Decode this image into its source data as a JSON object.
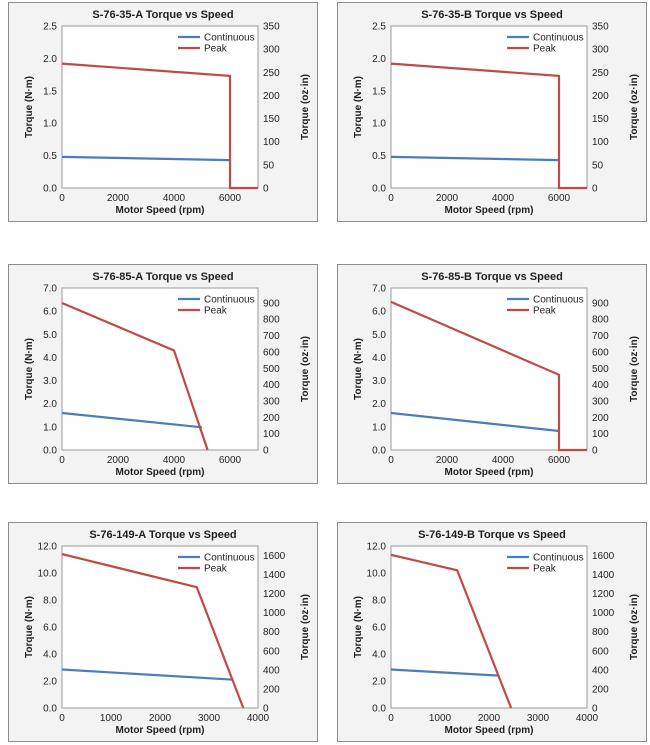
{
  "colors": {
    "continuous": "#4a7ebb",
    "peak": "#be4b48"
  },
  "chart_data": [
    {
      "type": "line",
      "title": "S-76-35-A Torque vs Speed",
      "xlabel": "Motor Speed (rpm)",
      "ylabel": "Torque (N·m)",
      "y2label": "Torque (oz·in)",
      "xlim": [
        0,
        7000
      ],
      "xticks": [
        "0",
        "2000",
        "4000",
        "6000"
      ],
      "xtick_values": [
        0,
        2000,
        4000,
        6000
      ],
      "ylim": [
        0,
        2.5
      ],
      "yticks": [
        "0.0",
        "0.5",
        "1.0",
        "1.5",
        "2.0",
        "2.5"
      ],
      "ytick_values": [
        0,
        0.5,
        1.0,
        1.5,
        2.0,
        2.5
      ],
      "y2lim": [
        0,
        350
      ],
      "y2ticks": [
        "0",
        "50",
        "100",
        "150",
        "200",
        "250",
        "300",
        "350"
      ],
      "y2tick_values": [
        0,
        50,
        100,
        150,
        200,
        250,
        300,
        350
      ],
      "legend": "top-right",
      "series": [
        {
          "name": "Continuous",
          "x": [
            0,
            6000
          ],
          "y": [
            0.48,
            0.43
          ]
        },
        {
          "name": "Peak",
          "x": [
            0,
            6000,
            6000,
            7000
          ],
          "y": [
            1.92,
            1.73,
            0,
            0
          ]
        }
      ]
    },
    {
      "type": "line",
      "title": "S-76-35-B Torque vs Speed",
      "xlabel": "Motor Speed (rpm)",
      "ylabel": "Torque (N·m)",
      "y2label": "Torque (oz·in)",
      "xlim": [
        0,
        7000
      ],
      "xticks": [
        "0",
        "2000",
        "4000",
        "6000"
      ],
      "xtick_values": [
        0,
        2000,
        4000,
        6000
      ],
      "ylim": [
        0,
        2.5
      ],
      "yticks": [
        "0.0",
        "0.5",
        "1.0",
        "1.5",
        "2.0",
        "2.5"
      ],
      "ytick_values": [
        0,
        0.5,
        1.0,
        1.5,
        2.0,
        2.5
      ],
      "y2lim": [
        0,
        350
      ],
      "y2ticks": [
        "0",
        "50",
        "100",
        "150",
        "200",
        "250",
        "300",
        "350"
      ],
      "y2tick_values": [
        0,
        50,
        100,
        150,
        200,
        250,
        300,
        350
      ],
      "legend": "top-right",
      "series": [
        {
          "name": "Continuous",
          "x": [
            0,
            6000
          ],
          "y": [
            0.48,
            0.43
          ]
        },
        {
          "name": "Peak",
          "x": [
            0,
            6000,
            6000,
            7000
          ],
          "y": [
            1.92,
            1.73,
            0,
            0
          ]
        }
      ]
    },
    {
      "type": "line",
      "title": "S-76-85-A Torque vs Speed",
      "xlabel": "Motor Speed (rpm)",
      "ylabel": "Torque (N·m)",
      "y2label": "Torque (oz·in)",
      "xlim": [
        0,
        7000
      ],
      "xticks": [
        "0",
        "2000",
        "4000",
        "6000"
      ],
      "xtick_values": [
        0,
        2000,
        4000,
        6000
      ],
      "ylim": [
        0,
        7.0
      ],
      "yticks": [
        "0.0",
        "1.0",
        "2.0",
        "3.0",
        "4.0",
        "5.0",
        "6.0",
        "7.0"
      ],
      "ytick_values": [
        0,
        1,
        2,
        3,
        4,
        5,
        6,
        7
      ],
      "y2lim": [
        0,
        991
      ],
      "y2ticks": [
        "0",
        "100",
        "200",
        "300",
        "400",
        "500",
        "600",
        "700",
        "800",
        "900"
      ],
      "y2tick_values": [
        0,
        100,
        200,
        300,
        400,
        500,
        600,
        700,
        800,
        900
      ],
      "legend": "top-right",
      "series": [
        {
          "name": "Continuous",
          "x": [
            0,
            5000
          ],
          "y": [
            1.6,
            0.98
          ]
        },
        {
          "name": "Peak",
          "x": [
            0,
            4000,
            5200
          ],
          "y": [
            6.35,
            4.3,
            0
          ]
        }
      ]
    },
    {
      "type": "line",
      "title": "S-76-85-B Torque vs Speed",
      "xlabel": "Motor Speed (rpm)",
      "ylabel": "Torque (N·m)",
      "y2label": "Torque (oz·in)",
      "xlim": [
        0,
        7000
      ],
      "xticks": [
        "0",
        "2000",
        "4000",
        "6000"
      ],
      "xtick_values": [
        0,
        2000,
        4000,
        6000
      ],
      "ylim": [
        0,
        7.0
      ],
      "yticks": [
        "0.0",
        "1.0",
        "2.0",
        "3.0",
        "4.0",
        "5.0",
        "6.0",
        "7.0"
      ],
      "ytick_values": [
        0,
        1,
        2,
        3,
        4,
        5,
        6,
        7
      ],
      "y2lim": [
        0,
        991
      ],
      "y2ticks": [
        "0",
        "100",
        "200",
        "300",
        "400",
        "500",
        "600",
        "700",
        "800",
        "900"
      ],
      "y2tick_values": [
        0,
        100,
        200,
        300,
        400,
        500,
        600,
        700,
        800,
        900
      ],
      "legend": "top-right",
      "series": [
        {
          "name": "Continuous",
          "x": [
            0,
            6000
          ],
          "y": [
            1.6,
            0.82
          ]
        },
        {
          "name": "Peak",
          "x": [
            0,
            6000,
            6000,
            7000
          ],
          "y": [
            6.4,
            3.25,
            0,
            0
          ]
        }
      ]
    },
    {
      "type": "line",
      "title": "S-76-149-A Torque vs Speed",
      "xlabel": "Motor Speed (rpm)",
      "ylabel": "Torque (N·m)",
      "y2label": "Torque (oz·in)",
      "xlim": [
        0,
        4000
      ],
      "xticks": [
        "0",
        "1000",
        "2000",
        "3000",
        "4000"
      ],
      "xtick_values": [
        0,
        1000,
        2000,
        3000,
        4000
      ],
      "ylim": [
        0,
        12.0
      ],
      "yticks": [
        "0.0",
        "2.0",
        "4.0",
        "6.0",
        "8.0",
        "10.0",
        "12.0"
      ],
      "ytick_values": [
        0,
        2,
        4,
        6,
        8,
        10,
        12
      ],
      "y2lim": [
        0,
        1699
      ],
      "y2ticks": [
        "0",
        "200",
        "400",
        "600",
        "800",
        "1000",
        "1200",
        "1400",
        "1600"
      ],
      "y2tick_values": [
        0,
        200,
        400,
        600,
        800,
        1000,
        1200,
        1400,
        1600
      ],
      "legend": "top-right",
      "series": [
        {
          "name": "Continuous",
          "x": [
            0,
            3500
          ],
          "y": [
            2.85,
            2.1
          ]
        },
        {
          "name": "Peak",
          "x": [
            0,
            2750,
            3700
          ],
          "y": [
            11.4,
            8.95,
            0
          ]
        }
      ]
    },
    {
      "type": "line",
      "title": "S-76-149-B Torque vs Speed",
      "xlabel": "Motor Speed (rpm)",
      "ylabel": "Torque (N·m)",
      "y2label": "Torque (oz·in)",
      "xlim": [
        0,
        4000
      ],
      "xticks": [
        "0",
        "1000",
        "2000",
        "3000",
        "4000"
      ],
      "xtick_values": [
        0,
        1000,
        2000,
        3000,
        4000
      ],
      "ylim": [
        0,
        12.0
      ],
      "yticks": [
        "0.0",
        "2.0",
        "4.0",
        "6.0",
        "8.0",
        "10.0",
        "12.0"
      ],
      "ytick_values": [
        0,
        2,
        4,
        6,
        8,
        10,
        12
      ],
      "y2lim": [
        0,
        1699
      ],
      "y2ticks": [
        "0",
        "200",
        "400",
        "600",
        "800",
        "1000",
        "1200",
        "1400",
        "1600"
      ],
      "y2tick_values": [
        0,
        200,
        400,
        600,
        800,
        1000,
        1200,
        1400,
        1600
      ],
      "legend": "top-right",
      "series": [
        {
          "name": "Continuous",
          "x": [
            0,
            2200
          ],
          "y": [
            2.85,
            2.4
          ]
        },
        {
          "name": "Peak",
          "x": [
            0,
            1350,
            2450
          ],
          "y": [
            11.35,
            10.2,
            0
          ]
        }
      ]
    }
  ]
}
